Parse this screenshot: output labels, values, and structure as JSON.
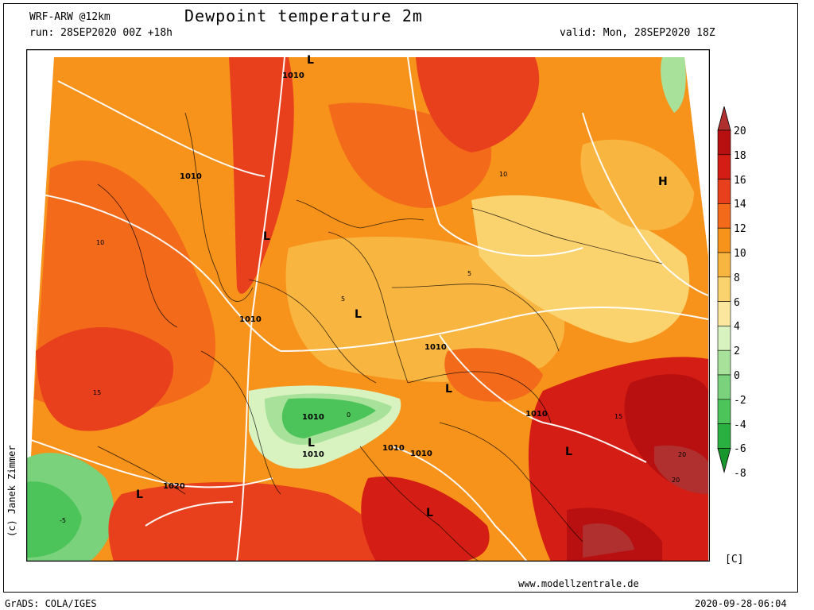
{
  "header": {
    "model": "WRF-ARW @12km",
    "title": "Dewpoint temperature 2m",
    "run": "run: 28SEP2020 00Z +18h",
    "valid": "valid: Mon, 28SEP2020 18Z"
  },
  "footer": {
    "copyright": "(c) Janek Zimmer",
    "website": "www.modellzentrale.de",
    "software": "GrADS: COLA/IGES",
    "timestamp": "2020-09-28-06:04"
  },
  "legend": {
    "unit": "[C]",
    "levels": [
      {
        "value": "20",
        "color": "#b03030"
      },
      {
        "value": "18",
        "color": "#b81010"
      },
      {
        "value": "16",
        "color": "#d41d14"
      },
      {
        "value": "14",
        "color": "#e8401c"
      },
      {
        "value": "12",
        "color": "#f26a1a"
      },
      {
        "value": "10",
        "color": "#f7921b"
      },
      {
        "value": "8",
        "color": "#f8b540"
      },
      {
        "value": "6",
        "color": "#fad26e"
      },
      {
        "value": "4",
        "color": "#fbe89e"
      },
      {
        "value": "2",
        "color": "#d8f2c0"
      },
      {
        "value": "0",
        "color": "#a8e29a"
      },
      {
        "value": "-2",
        "color": "#7ad27c"
      },
      {
        "value": "-4",
        "color": "#4cc45a"
      },
      {
        "value": "-6",
        "color": "#2ab040"
      },
      {
        "value": "-8",
        "color": "#18982c"
      }
    ]
  },
  "map_labels": {
    "pressure_centers": [
      "L",
      "L",
      "L",
      "L",
      "L",
      "L",
      "L",
      "L",
      "H",
      "L"
    ],
    "isobars": [
      "1010",
      "1010",
      "1010",
      "1010",
      "1010",
      "1010",
      "1010",
      "1010",
      "1010",
      "1020"
    ],
    "contours": [
      "10",
      "15",
      "5",
      "10",
      "15",
      "5",
      "20",
      "-5",
      "0",
      "20"
    ]
  }
}
